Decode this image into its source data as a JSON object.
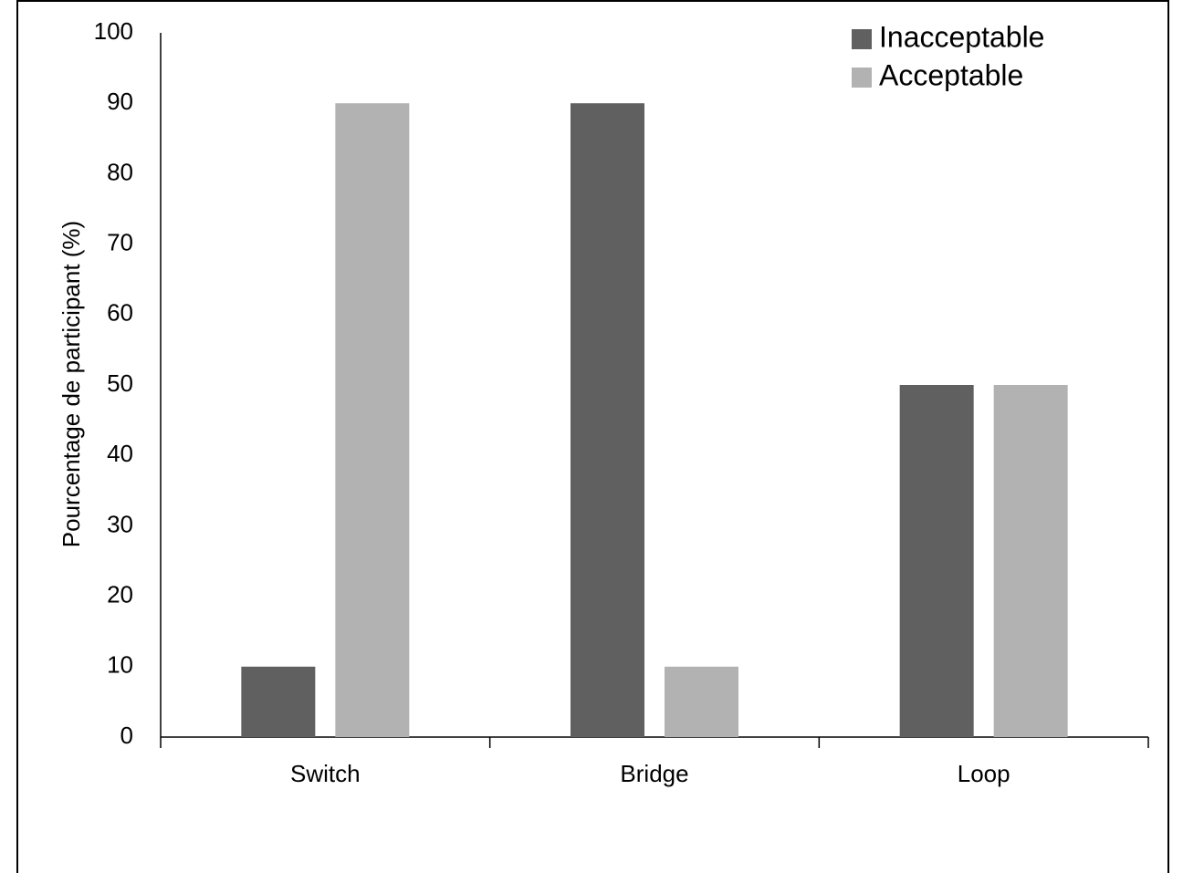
{
  "chart_data": {
    "type": "bar",
    "title": "",
    "xlabel": "",
    "ylabel": "Pourcentage de participant (%)",
    "categories": [
      "Switch",
      "Bridge",
      "Loop"
    ],
    "series": [
      {
        "name": "Inacceptable",
        "values": [
          10,
          90,
          50
        ],
        "color": "#606060"
      },
      {
        "name": "Acceptable",
        "values": [
          90,
          10,
          50
        ],
        "color": "#b2b2b2"
      }
    ],
    "ylim": [
      0,
      100
    ],
    "yticks": [
      0,
      10,
      20,
      30,
      40,
      50,
      60,
      70,
      80,
      90,
      100
    ],
    "grid": false,
    "legend_position": "top-right"
  }
}
